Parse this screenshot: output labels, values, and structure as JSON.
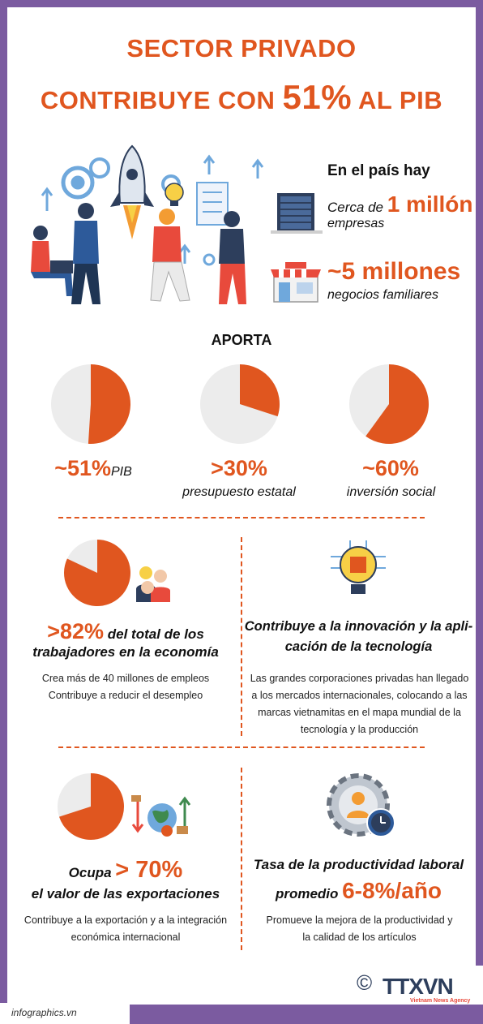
{
  "title": {
    "line1": "SECTOR PRIVADO",
    "line2_pre": "CONTRIBUYE CON ",
    "line2_big": "51%",
    "line2_post": " AL PIB"
  },
  "country": {
    "heading": "En el país hay",
    "companies_prefix": "Cerca de ",
    "companies_value": "1 millón",
    "companies_label": "empresas",
    "households_value": "~5 millones",
    "households_label": "negocios familiares"
  },
  "aporta": {
    "heading": "APORTA",
    "items": [
      {
        "value": "~51%",
        "label": "PIB",
        "share": 0.51
      },
      {
        "value": ">30%",
        "label": "presupuesto estatal",
        "share": 0.3
      },
      {
        "value": "~60%",
        "label": "inversión social",
        "share": 0.6
      }
    ]
  },
  "workers": {
    "value": ">82%",
    "label_line1": " del total de los",
    "label_line2": "trabajadores en la economía",
    "share": 0.82,
    "note1": "Crea más de 40 millones de empleos",
    "note2": "Contribuye a reducir el desempleo"
  },
  "innovation": {
    "line1": "Contribuye a la innovación y la apli-",
    "line2": "cación de la tecnología",
    "note1": "Las grandes corporaciones privadas han llegado",
    "note2": "a los mercados internacionales, colocando a las",
    "note3": "marcas vietnamitas en el mapa mundial de la",
    "note4": "tecnología y la producción"
  },
  "exports": {
    "prefix": "Ocupa ",
    "value": "> 70%",
    "label": "el valor de las exportaciones",
    "share": 0.7,
    "note1": "Contribuye a la exportación y a la integración",
    "note2": "económica internacional"
  },
  "productivity": {
    "line1": "Tasa de la productividad laboral",
    "prefix": "promedio ",
    "value": "6-8%/año",
    "note1": "Promueve la mejora de la productividad y",
    "note2": "la calidad de los artículos"
  },
  "footer": {
    "source": "infographics.vn",
    "copyright": "©",
    "brand": "TTXVN",
    "agency": "Vietnam News Agency"
  },
  "colors": {
    "accent": "#e0561f",
    "purple": "#7b5ba0",
    "pie_bg": "#ececec"
  }
}
